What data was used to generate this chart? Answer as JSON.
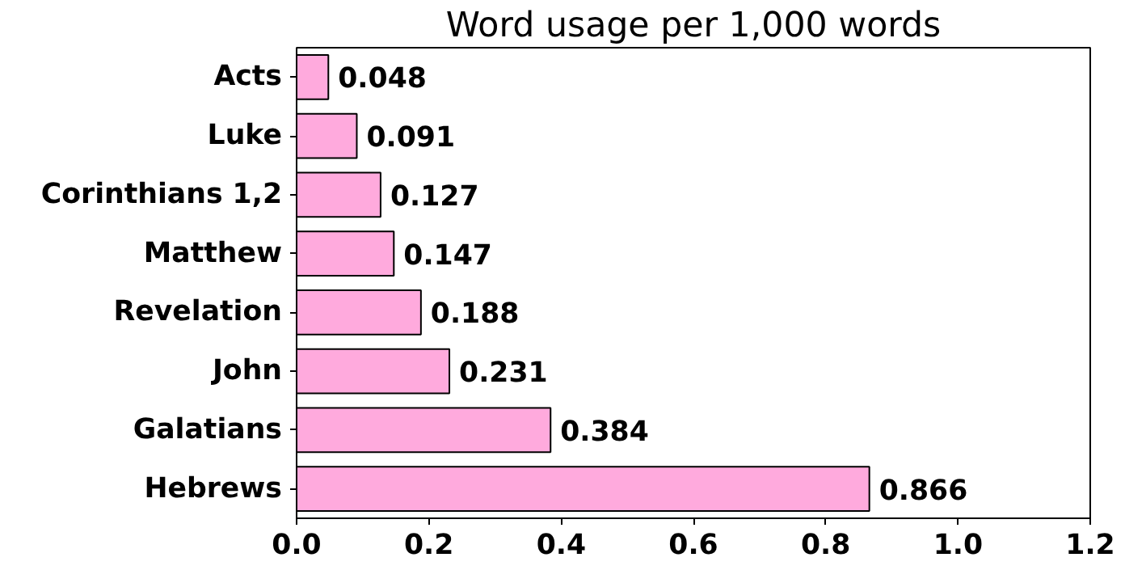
{
  "chart_data": {
    "type": "bar",
    "orientation": "horizontal",
    "title": "Word usage per 1,000 words",
    "categories": [
      "Acts",
      "Luke",
      "Corinthians 1,2",
      "Matthew",
      "Revelation",
      "John",
      "Galatians",
      "Hebrews"
    ],
    "values": [
      0.048,
      0.091,
      0.127,
      0.147,
      0.188,
      0.231,
      0.384,
      0.866
    ],
    "color": "#ffaadd",
    "xlim": [
      0,
      1.2
    ],
    "xticks": [
      {
        "value": 0,
        "label": "0.0"
      },
      0.2,
      0.4,
      0.6,
      0.8,
      {
        "value": 1,
        "label": "1.0"
      },
      1.2
    ],
    "data_labels": true,
    "grid": false
  }
}
